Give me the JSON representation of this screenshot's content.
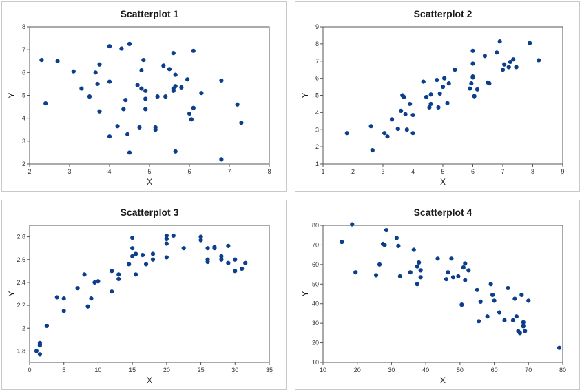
{
  "point_color": "#0b3f8c",
  "chart_data": [
    {
      "type": "scatter",
      "title": "Scatterplot 1",
      "xlabel": "X",
      "ylabel": "Y",
      "xlim": [
        2,
        8
      ],
      "ylim": [
        2,
        8
      ],
      "xticks": [
        2,
        3,
        4,
        5,
        6,
        7,
        8
      ],
      "yticks": [
        2,
        3,
        4,
        5,
        6,
        7,
        8
      ],
      "points": [
        [
          2.3,
          6.55
        ],
        [
          2.4,
          4.65
        ],
        [
          2.7,
          6.5
        ],
        [
          3.1,
          6.05
        ],
        [
          3.3,
          5.3
        ],
        [
          3.5,
          4.95
        ],
        [
          3.65,
          6.0
        ],
        [
          3.7,
          5.5
        ],
        [
          3.75,
          6.35
        ],
        [
          3.75,
          4.3
        ],
        [
          4.0,
          7.15
        ],
        [
          4.0,
          5.6
        ],
        [
          4.0,
          3.2
        ],
        [
          4.2,
          3.65
        ],
        [
          4.3,
          7.05
        ],
        [
          4.35,
          4.4
        ],
        [
          4.4,
          4.8
        ],
        [
          4.45,
          3.3
        ],
        [
          4.5,
          2.5
        ],
        [
          4.5,
          7.25
        ],
        [
          4.7,
          5.45
        ],
        [
          4.75,
          3.6
        ],
        [
          4.8,
          6.1
        ],
        [
          4.8,
          5.3
        ],
        [
          4.85,
          6.55
        ],
        [
          4.9,
          5.2
        ],
        [
          4.9,
          4.85
        ],
        [
          4.9,
          4.4
        ],
        [
          5.15,
          3.6
        ],
        [
          5.15,
          3.5
        ],
        [
          5.2,
          4.95
        ],
        [
          5.35,
          6.3
        ],
        [
          5.4,
          4.95
        ],
        [
          5.5,
          6.15
        ],
        [
          5.6,
          6.85
        ],
        [
          5.6,
          5.3
        ],
        [
          5.6,
          5.2
        ],
        [
          5.65,
          5.9
        ],
        [
          5.65,
          5.4
        ],
        [
          5.65,
          2.55
        ],
        [
          5.8,
          5.35
        ],
        [
          5.95,
          5.7
        ],
        [
          6.0,
          4.2
        ],
        [
          6.05,
          3.95
        ],
        [
          6.1,
          4.45
        ],
        [
          6.1,
          6.95
        ],
        [
          6.3,
          5.1
        ],
        [
          6.8,
          5.65
        ],
        [
          6.8,
          2.2
        ],
        [
          7.2,
          4.6
        ],
        [
          7.3,
          3.8
        ]
      ]
    },
    {
      "type": "scatter",
      "title": "Scatterplot 2",
      "xlabel": "X",
      "ylabel": "Y",
      "xlim": [
        1,
        9
      ],
      "ylim": [
        1,
        9
      ],
      "xticks": [
        1,
        2,
        3,
        4,
        5,
        6,
        7,
        8,
        9
      ],
      "yticks": [
        1,
        2,
        3,
        4,
        5,
        6,
        7,
        8,
        9
      ],
      "points": [
        [
          1.8,
          2.8
        ],
        [
          2.6,
          3.2
        ],
        [
          2.65,
          1.8
        ],
        [
          3.05,
          2.8
        ],
        [
          3.15,
          2.6
        ],
        [
          3.3,
          3.6
        ],
        [
          3.5,
          3.05
        ],
        [
          3.6,
          4.1
        ],
        [
          3.65,
          5.0
        ],
        [
          3.7,
          4.9
        ],
        [
          3.75,
          3.9
        ],
        [
          3.8,
          3.0
        ],
        [
          3.9,
          4.5
        ],
        [
          4.0,
          3.85
        ],
        [
          4.0,
          2.8
        ],
        [
          4.35,
          5.8
        ],
        [
          4.45,
          4.9
        ],
        [
          4.55,
          4.3
        ],
        [
          4.6,
          5.05
        ],
        [
          4.6,
          4.5
        ],
        [
          4.8,
          5.9
        ],
        [
          4.85,
          4.3
        ],
        [
          4.9,
          5.1
        ],
        [
          5.0,
          5.5
        ],
        [
          5.05,
          6.0
        ],
        [
          5.15,
          4.55
        ],
        [
          5.2,
          5.7
        ],
        [
          5.4,
          6.5
        ],
        [
          5.9,
          5.4
        ],
        [
          5.95,
          5.7
        ],
        [
          6.0,
          6.05
        ],
        [
          6.0,
          6.1
        ],
        [
          6.0,
          7.6
        ],
        [
          6.0,
          6.85
        ],
        [
          6.05,
          4.95
        ],
        [
          6.15,
          5.35
        ],
        [
          6.4,
          7.3
        ],
        [
          6.5,
          5.75
        ],
        [
          6.55,
          5.7
        ],
        [
          6.8,
          7.5
        ],
        [
          6.9,
          8.15
        ],
        [
          7.0,
          6.5
        ],
        [
          7.05,
          6.8
        ],
        [
          7.2,
          6.65
        ],
        [
          7.25,
          6.95
        ],
        [
          7.35,
          7.1
        ],
        [
          7.45,
          6.65
        ],
        [
          7.9,
          8.05
        ],
        [
          8.2,
          7.05
        ]
      ]
    },
    {
      "type": "scatter",
      "title": "Scatterplot 3",
      "xlabel": "X",
      "ylabel": "Y",
      "xlim": [
        0,
        35
      ],
      "ylim": [
        1.7,
        2.9
      ],
      "xticks": [
        0,
        5,
        10,
        15,
        20,
        25,
        30,
        35
      ],
      "yticks": [
        1.8,
        2.0,
        2.2,
        2.4,
        2.6,
        2.8
      ],
      "points": [
        [
          1.0,
          1.8
        ],
        [
          1.5,
          1.77
        ],
        [
          1.5,
          1.85
        ],
        [
          1.5,
          1.87
        ],
        [
          2.5,
          2.02
        ],
        [
          4.0,
          2.27
        ],
        [
          5.0,
          2.26
        ],
        [
          5.0,
          2.15
        ],
        [
          7.0,
          2.35
        ],
        [
          8.0,
          2.47
        ],
        [
          8.5,
          2.19
        ],
        [
          9.0,
          2.26
        ],
        [
          9.5,
          2.4
        ],
        [
          10.0,
          2.41
        ],
        [
          12.0,
          2.5
        ],
        [
          12.0,
          2.32
        ],
        [
          13.0,
          2.43
        ],
        [
          13.0,
          2.47
        ],
        [
          14.5,
          2.56
        ],
        [
          15.0,
          2.79
        ],
        [
          15.0,
          2.7
        ],
        [
          15.0,
          2.63
        ],
        [
          15.5,
          2.65
        ],
        [
          15.5,
          2.47
        ],
        [
          16.5,
          2.64
        ],
        [
          17.0,
          2.56
        ],
        [
          18.0,
          2.65
        ],
        [
          18.0,
          2.6
        ],
        [
          20.0,
          2.81
        ],
        [
          20.0,
          2.78
        ],
        [
          20.0,
          2.74
        ],
        [
          20.0,
          2.62
        ],
        [
          21.0,
          2.81
        ],
        [
          22.5,
          2.7
        ],
        [
          25.0,
          2.8
        ],
        [
          25.0,
          2.77
        ],
        [
          26.0,
          2.7
        ],
        [
          26.0,
          2.6
        ],
        [
          26.0,
          2.58
        ],
        [
          27.0,
          2.71
        ],
        [
          27.0,
          2.7
        ],
        [
          28.0,
          2.63
        ],
        [
          28.0,
          2.6
        ],
        [
          29.0,
          2.57
        ],
        [
          29.0,
          2.72
        ],
        [
          30.0,
          2.6
        ],
        [
          30.0,
          2.5
        ],
        [
          31.0,
          2.52
        ],
        [
          31.5,
          2.57
        ]
      ]
    },
    {
      "type": "scatter",
      "title": "Scatterplot 4",
      "xlabel": "X",
      "ylabel": "Y",
      "xlim": [
        10,
        80
      ],
      "ylim": [
        10,
        80
      ],
      "xticks": [
        10,
        20,
        30,
        40,
        50,
        60,
        70,
        80
      ],
      "yticks": [
        10,
        20,
        30,
        40,
        50,
        60,
        70,
        80
      ],
      "points": [
        [
          15.5,
          71.5
        ],
        [
          18.5,
          80.5
        ],
        [
          19.5,
          56.0
        ],
        [
          25.5,
          54.5
        ],
        [
          26.5,
          60.0
        ],
        [
          27.5,
          70.5
        ],
        [
          28.0,
          70.0
        ],
        [
          28.5,
          77.5
        ],
        [
          31.5,
          73.5
        ],
        [
          32.0,
          69.5
        ],
        [
          32.5,
          54.0
        ],
        [
          35.5,
          56.0
        ],
        [
          36.5,
          67.5
        ],
        [
          37.5,
          59.0
        ],
        [
          37.5,
          50.0
        ],
        [
          38.0,
          61.0
        ],
        [
          38.5,
          57.0
        ],
        [
          38.5,
          53.5
        ],
        [
          43.5,
          63.0
        ],
        [
          46.0,
          52.5
        ],
        [
          46.5,
          56.0
        ],
        [
          47.5,
          63.0
        ],
        [
          48.0,
          53.5
        ],
        [
          49.5,
          54.0
        ],
        [
          50.5,
          39.5
        ],
        [
          51.0,
          58.5
        ],
        [
          51.5,
          60.5
        ],
        [
          51.5,
          52.0
        ],
        [
          52.5,
          57.0
        ],
        [
          55.0,
          47.0
        ],
        [
          55.5,
          31.0
        ],
        [
          56.0,
          41.0
        ],
        [
          58.0,
          33.5
        ],
        [
          59.0,
          50.0
        ],
        [
          59.5,
          44.5
        ],
        [
          60.0,
          41.5
        ],
        [
          61.5,
          35.5
        ],
        [
          63.0,
          31.5
        ],
        [
          64.0,
          48.0
        ],
        [
          65.5,
          31.5
        ],
        [
          66.0,
          42.5
        ],
        [
          66.5,
          33.5
        ],
        [
          67.0,
          26.0
        ],
        [
          67.5,
          25.0
        ],
        [
          68.0,
          44.5
        ],
        [
          68.5,
          28.5
        ],
        [
          68.5,
          30.5
        ],
        [
          69.0,
          26.0
        ],
        [
          70.0,
          41.5
        ],
        [
          79.0,
          17.5
        ]
      ]
    }
  ]
}
